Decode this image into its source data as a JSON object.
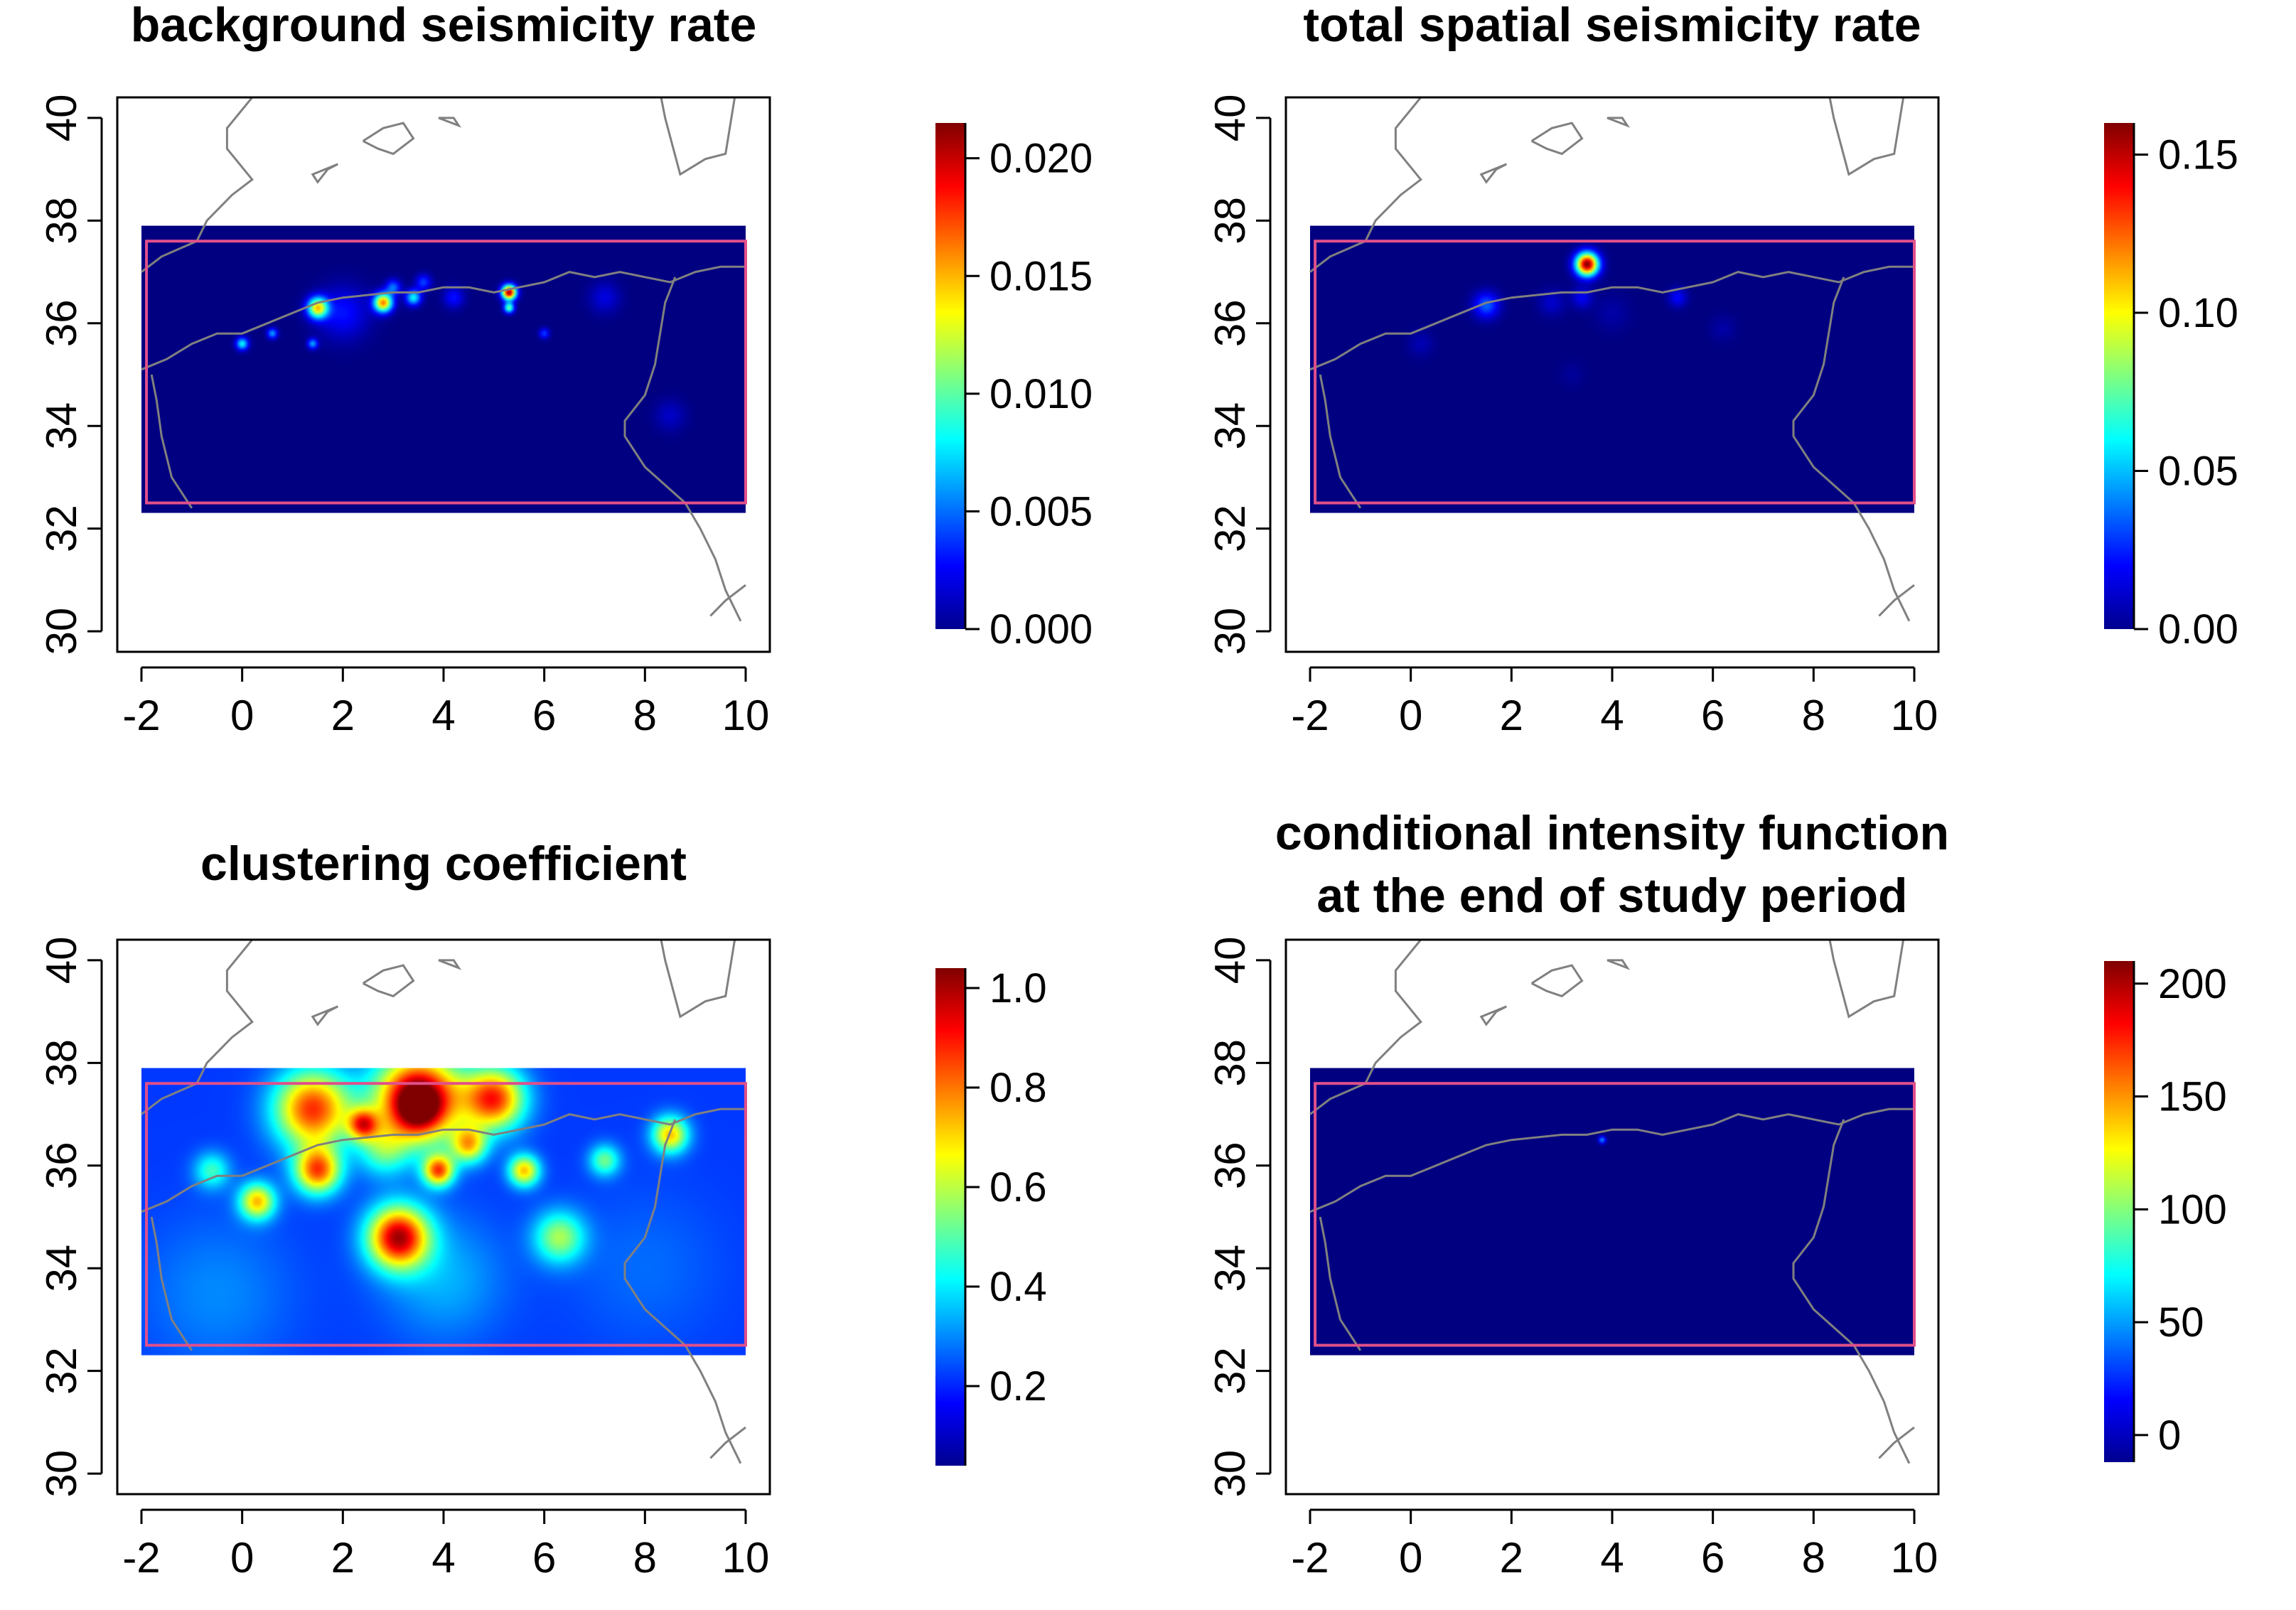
{
  "colors": {
    "frame": "#000000",
    "coastline": "#808080",
    "study_region": "#e0508a",
    "colormap": [
      "#00008f",
      "#0000ff",
      "#00ffff",
      "#ffff00",
      "#ff0000",
      "#800000"
    ]
  },
  "chart_data": [
    {
      "type": "heatmap",
      "id": "bg",
      "title": [
        "background seismicity rate"
      ],
      "xlim": [
        -2,
        10
      ],
      "ylim": [
        30,
        40
      ],
      "xticks": [
        "-2",
        "0",
        "2",
        "4",
        "6",
        "8",
        "10"
      ],
      "yticks": [
        "30",
        "32",
        "34",
        "36",
        "38",
        "40"
      ],
      "colorbar": {
        "min": 0,
        "max": 0.0215,
        "ticks": [
          "0.000",
          "0.005",
          "0.010",
          "0.015",
          "0.020"
        ],
        "values": [
          0,
          0.005,
          0.01,
          0.015,
          0.02
        ]
      },
      "raster_extent": {
        "x": [
          -2,
          10
        ],
        "y": [
          32.3,
          37.9
        ]
      },
      "study_region": {
        "x": [
          -1.9,
          10
        ],
        "y": [
          32.5,
          37.6
        ]
      },
      "baseline": 0.0,
      "hotspots": [
        {
          "x": 1.5,
          "y": 36.3,
          "r": 0.2,
          "v": 0.014
        },
        {
          "x": 2.8,
          "y": 36.4,
          "r": 0.18,
          "v": 0.016
        },
        {
          "x": 3.4,
          "y": 36.5,
          "r": 0.15,
          "v": 0.008
        },
        {
          "x": 5.3,
          "y": 36.6,
          "r": 0.14,
          "v": 0.021
        },
        {
          "x": 5.3,
          "y": 36.3,
          "r": 0.1,
          "v": 0.01
        },
        {
          "x": 0.0,
          "y": 35.6,
          "r": 0.12,
          "v": 0.008
        },
        {
          "x": 0.6,
          "y": 35.8,
          "r": 0.1,
          "v": 0.006
        },
        {
          "x": 1.4,
          "y": 35.6,
          "r": 0.1,
          "v": 0.006
        },
        {
          "x": 3.0,
          "y": 36.7,
          "r": 0.15,
          "v": 0.005
        },
        {
          "x": 3.6,
          "y": 36.8,
          "r": 0.15,
          "v": 0.004
        },
        {
          "x": 4.2,
          "y": 36.5,
          "r": 0.2,
          "v": 0.003
        },
        {
          "x": 6.0,
          "y": 35.8,
          "r": 0.1,
          "v": 0.004
        },
        {
          "x": 7.2,
          "y": 36.5,
          "r": 0.3,
          "v": 0.002
        },
        {
          "x": 2.0,
          "y": 36.2,
          "r": 0.5,
          "v": 0.003
        },
        {
          "x": 8.5,
          "y": 34.2,
          "r": 0.3,
          "v": 0.0015
        }
      ]
    },
    {
      "type": "heatmap",
      "id": "total",
      "title": [
        "total spatial seismicity rate"
      ],
      "xlim": [
        -2,
        10
      ],
      "ylim": [
        30,
        40
      ],
      "xticks": [
        "-2",
        "0",
        "2",
        "4",
        "6",
        "8",
        "10"
      ],
      "yticks": [
        "30",
        "32",
        "34",
        "36",
        "38",
        "40"
      ],
      "colorbar": {
        "min": 0,
        "max": 0.16,
        "ticks": [
          "0.00",
          "0.05",
          "0.10",
          "0.15"
        ],
        "values": [
          0,
          0.05,
          0.1,
          0.15
        ]
      },
      "raster_extent": {
        "x": [
          -2,
          10
        ],
        "y": [
          32.3,
          37.9
        ]
      },
      "study_region": {
        "x": [
          -1.9,
          10
        ],
        "y": [
          32.5,
          37.6
        ]
      },
      "baseline": 0.0,
      "hotspots": [
        {
          "x": 3.5,
          "y": 37.15,
          "r": 0.22,
          "v": 0.16
        },
        {
          "x": 1.5,
          "y": 36.35,
          "r": 0.25,
          "v": 0.035
        },
        {
          "x": 3.4,
          "y": 36.5,
          "r": 0.2,
          "v": 0.018
        },
        {
          "x": 5.3,
          "y": 36.5,
          "r": 0.18,
          "v": 0.02
        },
        {
          "x": 2.8,
          "y": 36.4,
          "r": 0.25,
          "v": 0.012
        },
        {
          "x": 0.2,
          "y": 35.6,
          "r": 0.25,
          "v": 0.008
        },
        {
          "x": 4.0,
          "y": 36.2,
          "r": 0.35,
          "v": 0.006
        },
        {
          "x": 6.2,
          "y": 35.9,
          "r": 0.25,
          "v": 0.006
        },
        {
          "x": 3.2,
          "y": 35.0,
          "r": 0.25,
          "v": 0.004
        }
      ]
    },
    {
      "type": "heatmap",
      "id": "cluster",
      "title": [
        "clustering coefficient"
      ],
      "xlim": [
        -2,
        10
      ],
      "ylim": [
        30,
        40
      ],
      "xticks": [
        "-2",
        "0",
        "2",
        "4",
        "6",
        "8",
        "10"
      ],
      "yticks": [
        "30",
        "32",
        "34",
        "36",
        "38",
        "40"
      ],
      "colorbar": {
        "min": 0.04,
        "max": 1.04,
        "ticks": [
          "0.2",
          "0.4",
          "0.6",
          "0.8",
          "1.0"
        ],
        "values": [
          0.2,
          0.4,
          0.6,
          0.8,
          1.0
        ]
      },
      "raster_extent": {
        "x": [
          -2,
          10
        ],
        "y": [
          32.3,
          37.9
        ]
      },
      "study_region": {
        "x": [
          -1.9,
          10
        ],
        "y": [
          32.5,
          37.6
        ]
      },
      "baseline": 0.22,
      "hotspots": [
        {
          "x": 3.5,
          "y": 37.3,
          "r": 0.85,
          "v": 0.85
        },
        {
          "x": 3.5,
          "y": 37.1,
          "r": 0.45,
          "v": 0.25
        },
        {
          "x": 1.4,
          "y": 37.1,
          "r": 0.75,
          "v": 0.65
        },
        {
          "x": 5.0,
          "y": 37.3,
          "r": 0.6,
          "v": 0.65
        },
        {
          "x": 3.1,
          "y": 34.6,
          "r": 0.6,
          "v": 0.75
        },
        {
          "x": 6.3,
          "y": 34.6,
          "r": 0.5,
          "v": 0.35
        },
        {
          "x": 1.5,
          "y": 35.9,
          "r": 0.45,
          "v": 0.6
        },
        {
          "x": 0.3,
          "y": 35.3,
          "r": 0.35,
          "v": 0.5
        },
        {
          "x": 2.4,
          "y": 36.8,
          "r": 0.3,
          "v": 0.5
        },
        {
          "x": 3.9,
          "y": 35.9,
          "r": 0.3,
          "v": 0.6
        },
        {
          "x": 4.5,
          "y": 36.4,
          "r": 0.35,
          "v": 0.45
        },
        {
          "x": 5.6,
          "y": 35.9,
          "r": 0.3,
          "v": 0.5
        },
        {
          "x": 8.5,
          "y": 36.6,
          "r": 0.35,
          "v": 0.5
        },
        {
          "x": 7.2,
          "y": 36.1,
          "r": 0.3,
          "v": 0.3
        },
        {
          "x": -0.6,
          "y": 35.9,
          "r": 0.35,
          "v": 0.25
        },
        {
          "x": 2.8,
          "y": 36.3,
          "r": 0.5,
          "v": 0.25
        },
        {
          "x": 4.0,
          "y": 33.8,
          "r": 1.2,
          "v": 0.12
        },
        {
          "x": 8.0,
          "y": 34.0,
          "r": 1.5,
          "v": 0.05
        },
        {
          "x": -0.5,
          "y": 33.5,
          "r": 1.5,
          "v": 0.08
        }
      ]
    },
    {
      "type": "heatmap",
      "id": "cif",
      "title": [
        "conditional intensity function",
        "at the end of study period"
      ],
      "xlim": [
        -2,
        10
      ],
      "ylim": [
        30,
        40
      ],
      "xticks": [
        "-2",
        "0",
        "2",
        "4",
        "6",
        "8",
        "10"
      ],
      "yticks": [
        "30",
        "32",
        "34",
        "36",
        "38",
        "40"
      ],
      "colorbar": {
        "min": -12,
        "max": 210,
        "ticks": [
          "0",
          "50",
          "100",
          "150",
          "200"
        ],
        "values": [
          0,
          50,
          100,
          150,
          200
        ]
      },
      "raster_extent": {
        "x": [
          -2,
          10
        ],
        "y": [
          32.3,
          37.9
        ]
      },
      "study_region": {
        "x": [
          -1.9,
          10
        ],
        "y": [
          32.5,
          37.6
        ]
      },
      "baseline": -12,
      "hotspots": [
        {
          "x": 3.8,
          "y": 36.5,
          "r": 0.07,
          "v": 60
        }
      ]
    }
  ]
}
